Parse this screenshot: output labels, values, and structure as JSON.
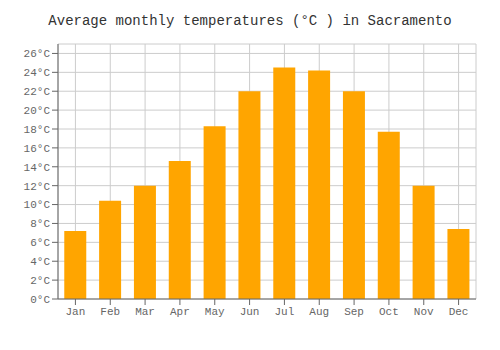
{
  "chart_data": {
    "type": "bar",
    "title": "Average monthly temperatures (°C ) in Sacramento",
    "categories": [
      "Jan",
      "Feb",
      "Mar",
      "Apr",
      "May",
      "Jun",
      "Jul",
      "Aug",
      "Sep",
      "Oct",
      "Nov",
      "Dec"
    ],
    "values": [
      7.2,
      10.4,
      12.0,
      14.6,
      18.3,
      22.0,
      24.5,
      24.2,
      22.0,
      17.7,
      12.0,
      7.4
    ],
    "color": "#FFA500",
    "ylim": [
      0,
      27
    ],
    "yticks": [
      {
        "value": 0,
        "label": "0°C"
      },
      {
        "value": 2,
        "label": "2°C"
      },
      {
        "value": 4,
        "label": "4°C"
      },
      {
        "value": 6,
        "label": "6°C"
      },
      {
        "value": 8,
        "label": "8°C"
      },
      {
        "value": 10,
        "label": "10°C"
      },
      {
        "value": 12,
        "label": "12°C"
      },
      {
        "value": 14,
        "label": "14°C"
      },
      {
        "value": 16,
        "label": "16°C"
      },
      {
        "value": 18,
        "label": "18°C"
      },
      {
        "value": 20,
        "label": "20°C"
      },
      {
        "value": 22,
        "label": "22°C"
      },
      {
        "value": 24,
        "label": "24°C"
      },
      {
        "value": 26,
        "label": "26°C"
      }
    ],
    "grid": true
  }
}
